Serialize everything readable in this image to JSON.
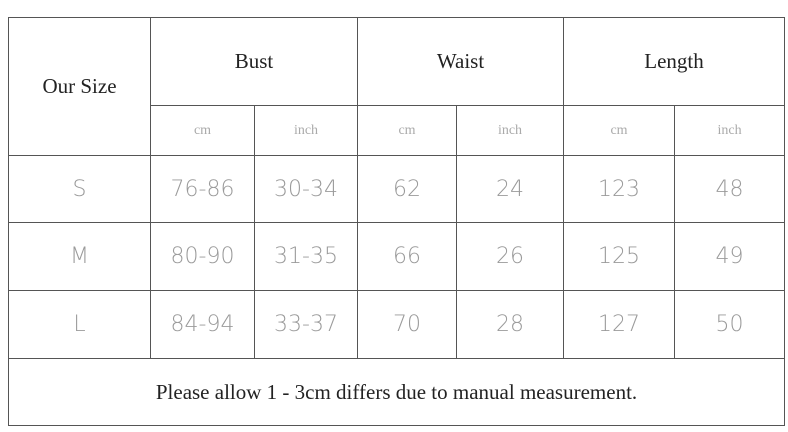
{
  "table": {
    "header": {
      "size": "Our Size",
      "groups": [
        "Bust",
        "Waist",
        "Length"
      ],
      "units": [
        "cm",
        "inch",
        "cm",
        "inch",
        "cm",
        "inch"
      ]
    },
    "rows": [
      [
        "S",
        "76-86",
        "30-34",
        "62",
        "24",
        "123",
        "48"
      ],
      [
        "M",
        "80-90",
        "31-35",
        "66",
        "26",
        "125",
        "49"
      ],
      [
        "L",
        "84-94",
        "33-37",
        "70",
        "28",
        "127",
        "50"
      ]
    ],
    "note": "Please allow 1 - 3cm differs due to manual measurement."
  }
}
